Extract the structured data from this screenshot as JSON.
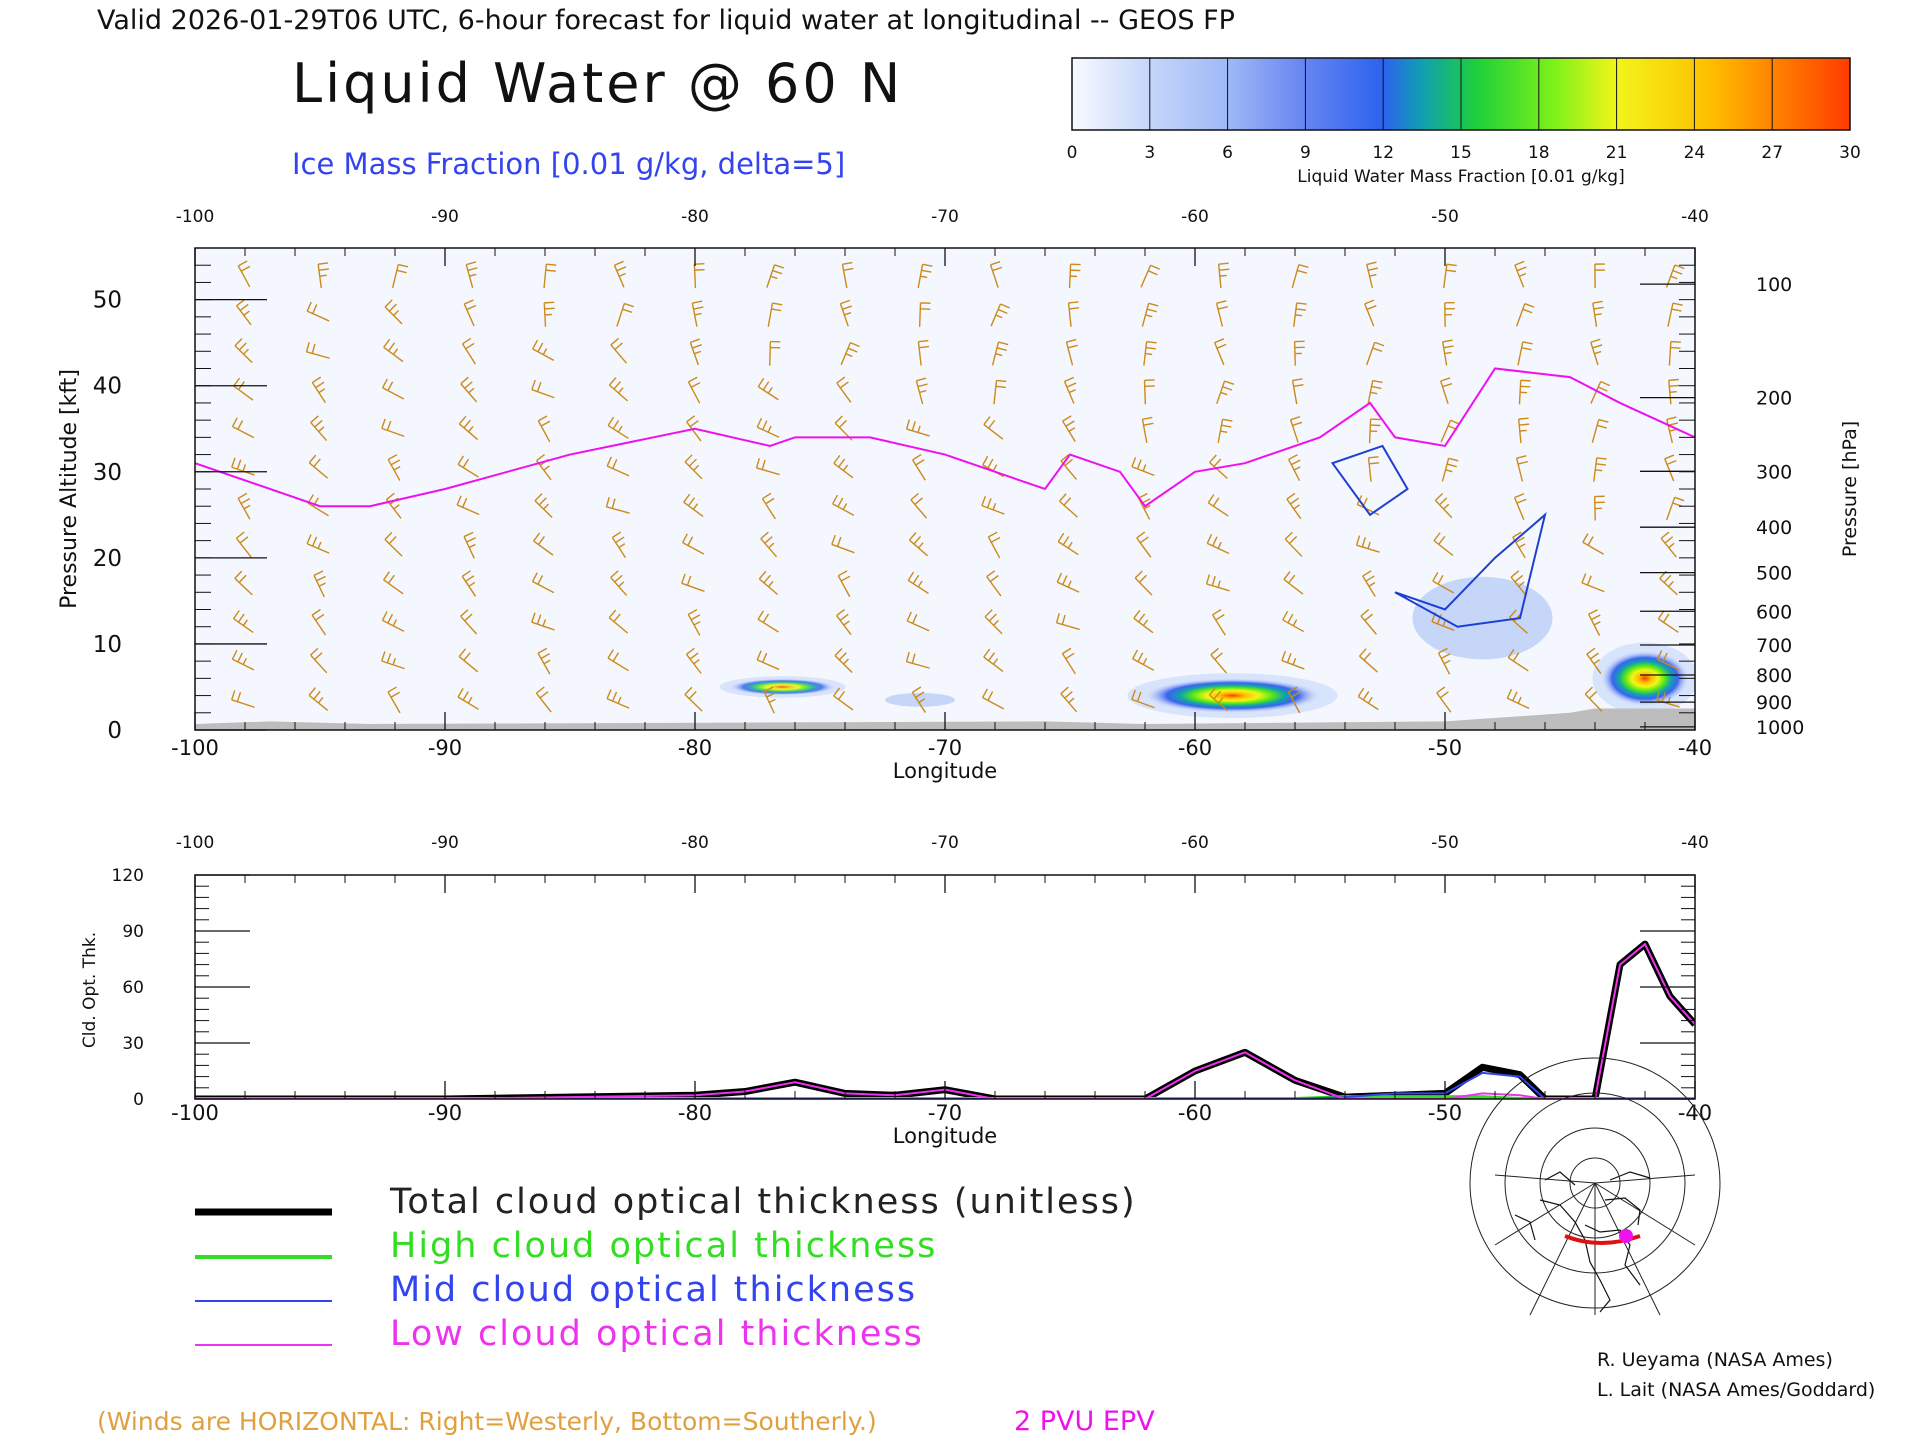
{
  "header": {
    "valid_line": "Valid 2026-01-29T06 UTC, 6-hour forecast for liquid water at longitudinal -- GEOS FP",
    "title": "Liquid Water @ 60 N",
    "subtitle": "Ice Mass Fraction [0.01 g/kg, delta=5]"
  },
  "colorbar": {
    "ticks": [
      "0",
      "3",
      "6",
      "9",
      "12",
      "15",
      "18",
      "21",
      "24",
      "27",
      "30"
    ],
    "label": "Liquid Water Mass Fraction [0.01 g/kg]",
    "colors": [
      "#f1f4fe",
      "#c5d6fa",
      "#9fb9f7",
      "#7a93f0",
      "#3b63ef",
      "#12a3a8",
      "#1ecf3a",
      "#5cea12",
      "#e6f51a",
      "#ffbf00",
      "#ff6a00"
    ]
  },
  "panels": {
    "upper": {
      "ylabel_left": "Pressure Altitude [kft]",
      "ylabel_right": "Pressure [hPa]",
      "xlabel": "Longitude",
      "x_ticks": [
        "-100",
        "-90",
        "-80",
        "-70",
        "-60",
        "-50",
        "-40"
      ],
      "y_ticks_left": [
        "0",
        "10",
        "20",
        "30",
        "40",
        "50"
      ],
      "y_ticks_right": [
        "100",
        "200",
        "300",
        "400",
        "500",
        "600",
        "700",
        "800",
        "900",
        "1000"
      ]
    },
    "lower": {
      "ylabel": "Cld. Opt. Thk.",
      "xlabel": "Longitude",
      "x_ticks": [
        "-100",
        "-90",
        "-80",
        "-70",
        "-60",
        "-50",
        "-40"
      ],
      "y_ticks": [
        "0",
        "30",
        "60",
        "90",
        "120"
      ]
    }
  },
  "legend": [
    {
      "label": "Total cloud optical thickness (unitless)",
      "color": "#000000"
    },
    {
      "label": "High cloud optical thickness",
      "color": "#33dd22"
    },
    {
      "label": "Mid cloud optical thickness",
      "color": "#3344ee"
    },
    {
      "label": "Low cloud optical thickness",
      "color": "#ee33ee"
    }
  ],
  "credits": [
    "R. Ueyama (NASA Ames)",
    "L. Lait (NASA Ames/Goddard)"
  ],
  "footer": {
    "winds_note": "(Winds are HORIZONTAL: Right=Westerly, Bottom=Southerly.)",
    "epv_label": "2 PVU EPV"
  },
  "colors": {
    "wind_barbs": "#cc8a1a",
    "epv_contour": "#ee11ee",
    "ice_contour": "#1f3fd0",
    "terrain": "#bdbdbd"
  },
  "chart_data": [
    {
      "type": "heatmap",
      "title": "Liquid Water @ 60 N",
      "xlabel": "Longitude",
      "ylabel": "Pressure Altitude [kft]",
      "xlim": [
        -100,
        -40
      ],
      "ylim": [
        0,
        56
      ],
      "field": "Liquid Water Mass Fraction [0.01 g/kg]",
      "blobs": [
        {
          "lon": -76.5,
          "kft": 5,
          "max": 14,
          "width_deg": 3,
          "height_kft": 1.2
        },
        {
          "lon": -71,
          "kft": 3.5,
          "max": 4,
          "width_deg": 2,
          "height_kft": 1
        },
        {
          "lon": -58.5,
          "kft": 4,
          "max": 20,
          "width_deg": 5,
          "height_kft": 2.5
        },
        {
          "lon": -48.5,
          "kft": 13,
          "max": 5,
          "width_deg": 4,
          "height_kft": 6
        },
        {
          "lon": -42,
          "kft": 6,
          "max": 29,
          "width_deg": 2.5,
          "height_kft": 4
        }
      ],
      "epv_2pvu_kft": [
        [
          -100,
          31
        ],
        [
          -95,
          26
        ],
        [
          -93,
          26
        ],
        [
          -90,
          28
        ],
        [
          -85,
          32
        ],
        [
          -80,
          35
        ],
        [
          -77,
          33
        ],
        [
          -76,
          34
        ],
        [
          -73,
          34
        ],
        [
          -70,
          32
        ],
        [
          -66,
          28
        ],
        [
          -65,
          32
        ],
        [
          -63,
          30
        ],
        [
          -62,
          26
        ],
        [
          -60,
          30
        ],
        [
          -58,
          31
        ],
        [
          -55,
          34
        ],
        [
          -53,
          38
        ],
        [
          -52,
          34
        ],
        [
          -50,
          33
        ],
        [
          -48,
          42
        ],
        [
          -45,
          41
        ],
        [
          -43,
          38
        ],
        [
          -40,
          34
        ]
      ],
      "ice_contours_kft": [
        {
          "lon": [
            -54.5,
            -53,
            -51.5,
            -52.5,
            -53.5,
            -54.5
          ],
          "kft": [
            31,
            25,
            28,
            33,
            32,
            31
          ]
        },
        {
          "lon": [
            -52,
            -49.5,
            -47,
            -46,
            -48,
            -50,
            -52
          ],
          "kft": [
            16,
            12,
            13,
            25,
            20,
            14,
            16
          ]
        }
      ],
      "terrain_kft": [
        [
          -100,
          0
        ],
        [
          -97,
          1
        ],
        [
          -93,
          0
        ],
        [
          -66,
          1
        ],
        [
          -62,
          0
        ],
        [
          -50,
          1
        ],
        [
          -45,
          2
        ],
        [
          -44,
          2.5
        ],
        [
          -40,
          2.5
        ]
      ]
    },
    {
      "type": "line",
      "xlabel": "Longitude",
      "ylabel": "Cld. Opt. Thk.",
      "xlim": [
        -100,
        -40
      ],
      "ylim": [
        0,
        120
      ],
      "x": [
        -100,
        -90,
        -80,
        -78,
        -76,
        -74,
        -72,
        -70,
        -68,
        -62,
        -60,
        -58,
        -56,
        -54,
        -52,
        -50,
        -48.5,
        -47,
        -46,
        -44,
        -43,
        -42,
        -41,
        -40
      ],
      "series": [
        {
          "name": "Total cloud optical thickness (unitless)",
          "values": [
            0,
            0,
            2,
            4,
            9,
            3,
            2,
            5,
            0,
            0,
            15,
            25,
            10,
            1,
            2,
            3,
            17,
            13,
            0,
            0,
            72,
            83,
            55,
            40
          ]
        },
        {
          "name": "High cloud optical thickness",
          "values": [
            0,
            0,
            0,
            0,
            0,
            0,
            0,
            0,
            0,
            0,
            0,
            0,
            0,
            1,
            1,
            1,
            1,
            0,
            0,
            0,
            0,
            0,
            0,
            0
          ]
        },
        {
          "name": "Mid cloud optical thickness",
          "values": [
            0,
            0,
            0,
            0,
            0,
            0,
            0,
            0,
            0,
            0,
            0,
            0,
            0,
            1,
            3,
            3,
            14,
            12,
            0,
            0,
            0,
            0,
            0,
            0
          ]
        },
        {
          "name": "Low cloud optical thickness",
          "values": [
            0,
            0,
            2,
            4,
            9,
            3,
            2,
            5,
            0,
            0,
            15,
            25,
            10,
            0,
            0,
            0,
            3,
            2,
            0,
            0,
            72,
            83,
            55,
            40
          ]
        }
      ]
    }
  ]
}
